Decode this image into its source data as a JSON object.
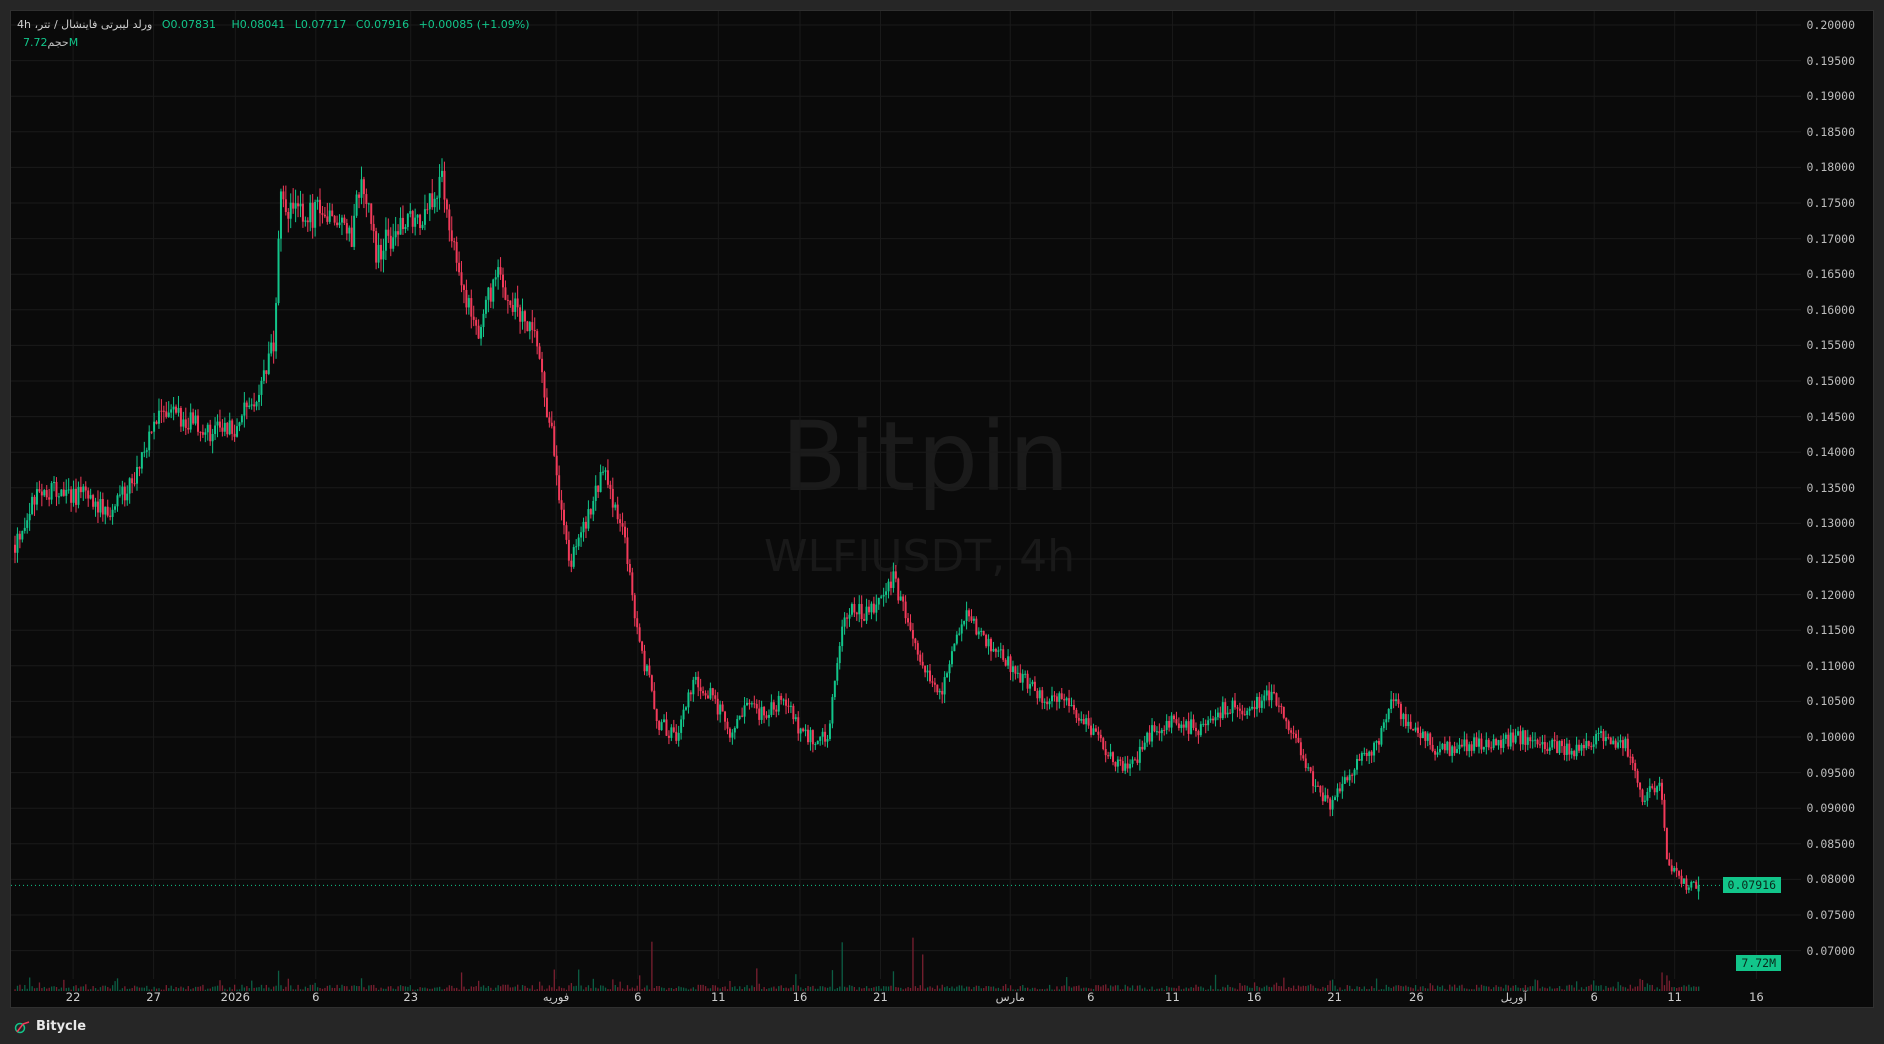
{
  "legend": {
    "symbol": "ورلد لیبرتی فاینشال / تتر، 4h",
    "open": "O0.07831",
    "high": "H0.08041",
    "low": "L0.07717",
    "close": "C0.07916",
    "change": "+0.00085 (+1.09%)",
    "volume_label": "حجم",
    "volume_value": "7.72M"
  },
  "watermark": {
    "brand": "Bitpin",
    "symbol": "WLFIUSDT, 4h"
  },
  "footer": {
    "brand": "Bitycle"
  },
  "colors": {
    "up": "#12c58a",
    "down": "#f23a5a",
    "background": "#0a0a0a",
    "grid": "#1a1a1a"
  },
  "chart_data": {
    "type": "candlestick",
    "title": "WLFIUSDT, 4h",
    "candle_count": 691,
    "ylim": [
      0.07,
      0.2
    ],
    "y_ticks": [
      "0.20000",
      "0.19500",
      "0.19000",
      "0.18500",
      "0.18000",
      "0.17500",
      "0.17000",
      "0.16500",
      "0.16000",
      "0.15500",
      "0.15000",
      "0.14500",
      "0.14000",
      "0.13500",
      "0.13000",
      "0.12500",
      "0.12000",
      "0.11500",
      "0.11000",
      "0.10500",
      "0.10000",
      "0.09500",
      "0.09000",
      "0.08500",
      "0.08000",
      "0.07500",
      "0.07000"
    ],
    "x_ticks": [
      "22",
      "27",
      "2026",
      "6",
      "23",
      "فوریه",
      "6",
      "11",
      "16",
      "21",
      "مارس",
      "6",
      "11",
      "16",
      "21",
      "26",
      "آوریل",
      "6",
      "11",
      "16"
    ],
    "last_price": "0.07916",
    "last_volume": "7.72M",
    "last_candle": {
      "open": 0.07831,
      "high": 0.08041,
      "low": 0.07717,
      "close": 0.07916,
      "volume_m": 7.72
    },
    "close_path": [
      [
        0,
        0.127
      ],
      [
        10,
        0.135
      ],
      [
        20,
        0.134
      ],
      [
        30,
        0.134
      ],
      [
        39,
        0.131
      ],
      [
        49,
        0.137
      ],
      [
        59,
        0.145
      ],
      [
        69,
        0.145
      ],
      [
        79,
        0.143
      ],
      [
        89,
        0.143
      ],
      [
        99,
        0.148
      ],
      [
        106,
        0.155
      ],
      [
        109,
        0.175
      ],
      [
        118,
        0.173
      ],
      [
        128,
        0.174
      ],
      [
        138,
        0.17
      ],
      [
        142,
        0.18
      ],
      [
        148,
        0.168
      ],
      [
        158,
        0.172
      ],
      [
        167,
        0.172
      ],
      [
        175,
        0.179
      ],
      [
        182,
        0.165
      ],
      [
        190,
        0.157
      ],
      [
        197,
        0.165
      ],
      [
        207,
        0.159
      ],
      [
        214,
        0.155
      ],
      [
        221,
        0.14
      ],
      [
        227,
        0.124
      ],
      [
        234,
        0.13
      ],
      [
        241,
        0.137
      ],
      [
        249,
        0.13
      ],
      [
        256,
        0.113
      ],
      [
        264,
        0.102
      ],
      [
        271,
        0.1
      ],
      [
        278,
        0.108
      ],
      [
        286,
        0.106
      ],
      [
        293,
        0.1
      ],
      [
        300,
        0.104
      ],
      [
        308,
        0.103
      ],
      [
        315,
        0.106
      ],
      [
        323,
        0.1
      ],
      [
        333,
        0.1
      ],
      [
        340,
        0.118
      ],
      [
        350,
        0.117
      ],
      [
        360,
        0.122
      ],
      [
        369,
        0.113
      ],
      [
        379,
        0.106
      ],
      [
        389,
        0.117
      ],
      [
        399,
        0.113
      ],
      [
        409,
        0.11
      ],
      [
        419,
        0.106
      ],
      [
        429,
        0.105
      ],
      [
        438,
        0.102
      ],
      [
        448,
        0.098
      ],
      [
        456,
        0.095
      ],
      [
        466,
        0.101
      ],
      [
        475,
        0.102
      ],
      [
        488,
        0.101
      ],
      [
        495,
        0.104
      ],
      [
        505,
        0.104
      ],
      [
        515,
        0.106
      ],
      [
        525,
        0.1
      ],
      [
        532,
        0.094
      ],
      [
        539,
        0.09
      ],
      [
        549,
        0.096
      ],
      [
        559,
        0.099
      ],
      [
        564,
        0.105
      ],
      [
        574,
        0.101
      ],
      [
        584,
        0.098
      ],
      [
        594,
        0.099
      ],
      [
        606,
        0.099
      ],
      [
        618,
        0.1
      ],
      [
        628,
        0.099
      ],
      [
        638,
        0.098
      ],
      [
        650,
        0.1
      ],
      [
        660,
        0.099
      ],
      [
        667,
        0.091
      ],
      [
        674,
        0.094
      ],
      [
        677,
        0.083
      ],
      [
        685,
        0.079
      ],
      [
        690,
        0.0792
      ]
    ],
    "volume_spikes_m": [
      [
        108,
        35
      ],
      [
        142,
        22
      ],
      [
        183,
        32
      ],
      [
        221,
        37
      ],
      [
        231,
        37
      ],
      [
        256,
        27
      ],
      [
        261,
        85
      ],
      [
        304,
        39
      ],
      [
        320,
        29
      ],
      [
        335,
        36
      ],
      [
        339,
        84
      ],
      [
        360,
        34
      ],
      [
        368,
        92
      ],
      [
        372,
        63
      ],
      [
        431,
        24
      ],
      [
        492,
        28
      ],
      [
        539,
        18
      ],
      [
        667,
        19
      ],
      [
        675,
        32
      ],
      [
        677,
        27
      ]
    ]
  }
}
